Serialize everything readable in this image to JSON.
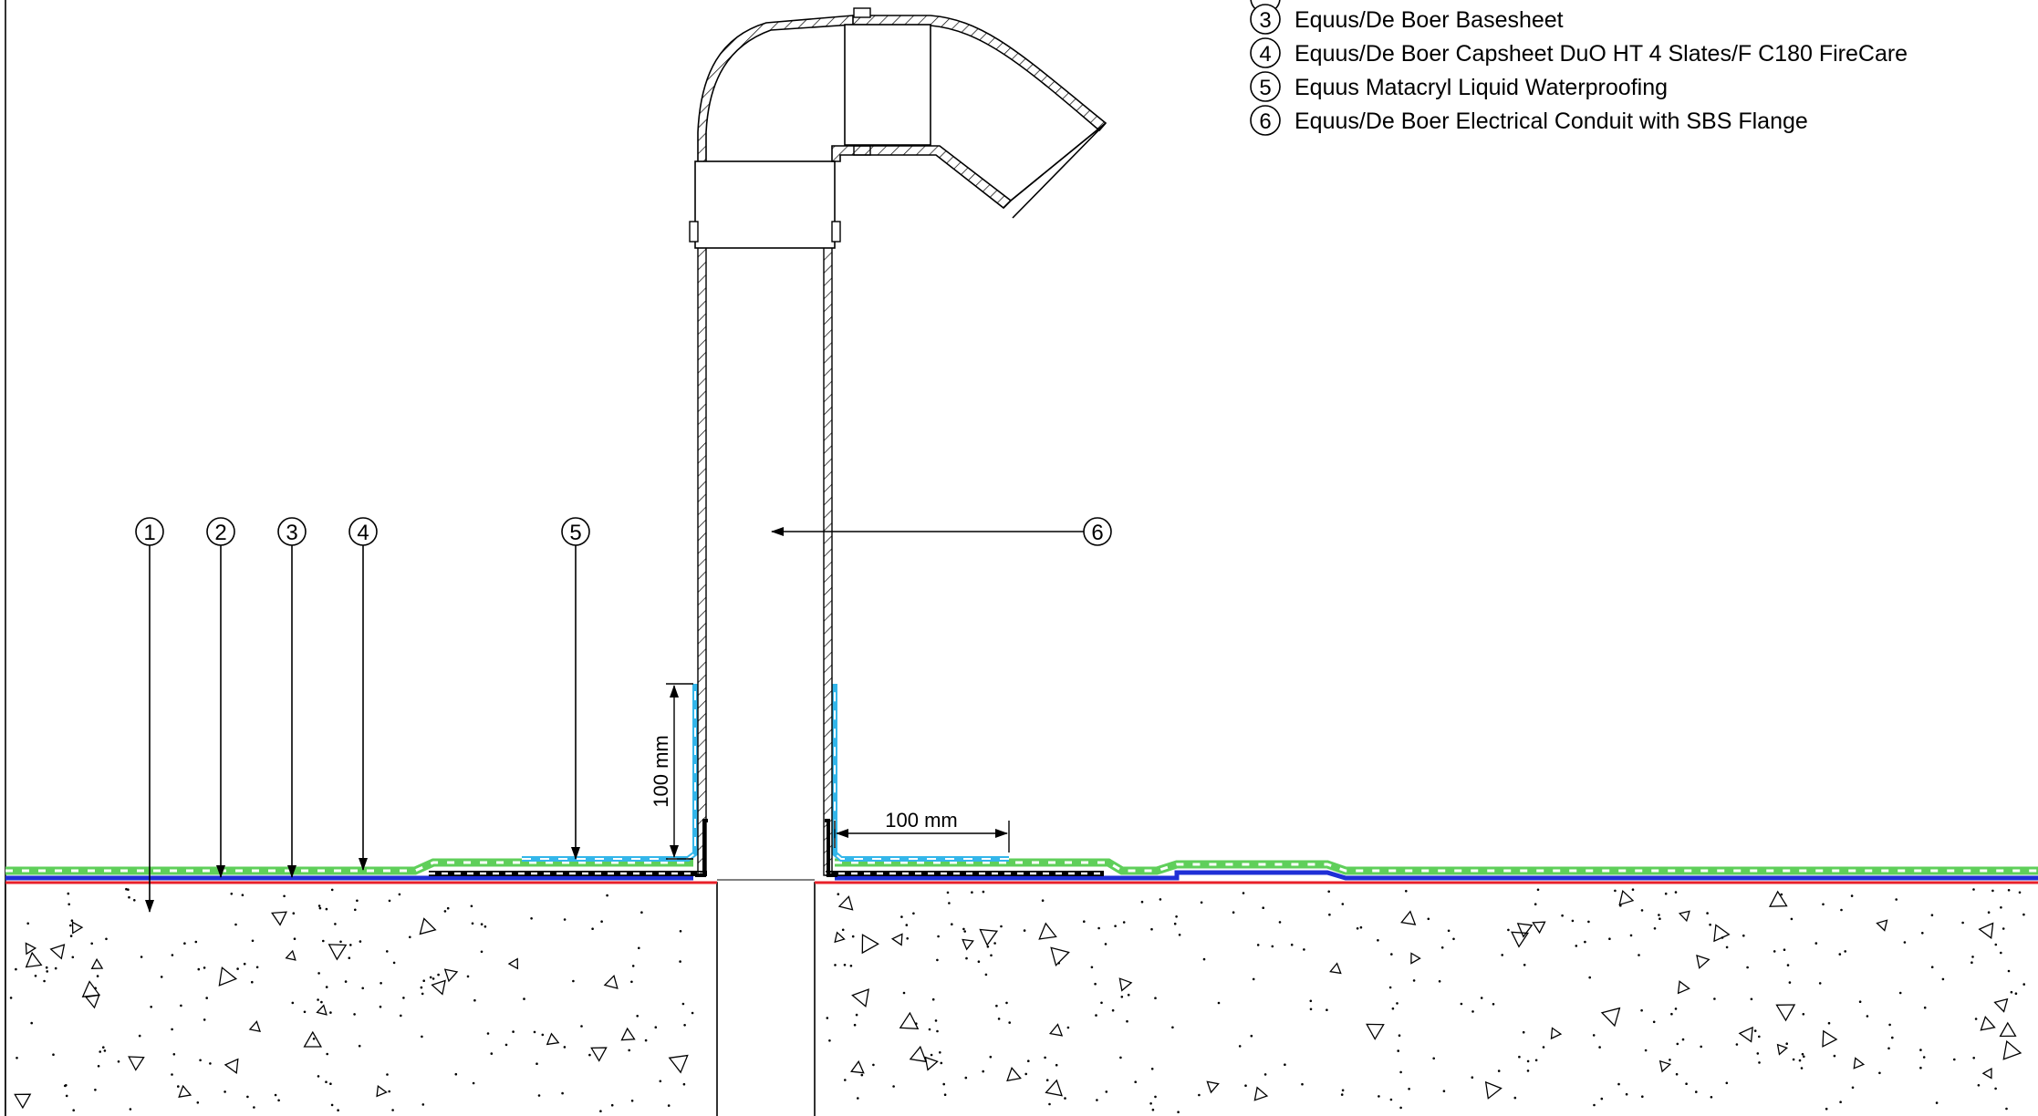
{
  "legend": {
    "items": [
      {
        "num": "3",
        "label": "Equus/De Boer Basesheet"
      },
      {
        "num": "4",
        "label": "Equus/De Boer Capsheet DuO HT 4 Slates/F C180 FireCare"
      },
      {
        "num": "5",
        "label": "Equus Matacryl Liquid Waterproofing"
      },
      {
        "num": "6",
        "label": "Equus/De Boer Electrical Conduit with SBS Flange"
      }
    ]
  },
  "callouts": {
    "c1": "1",
    "c2": "2",
    "c3": "3",
    "c4": "4",
    "c5": "5",
    "c6": "6"
  },
  "dimensions": {
    "vertical": "100  mm",
    "horizontal": "100  mm"
  },
  "colors": {
    "vapour_layer": "#e8202a",
    "basesheet": "#1f2fd6",
    "capsheet": "#5fcf5a",
    "liquid_waterproofing": "#33b6ea",
    "concrete_hatch": "#000000"
  }
}
